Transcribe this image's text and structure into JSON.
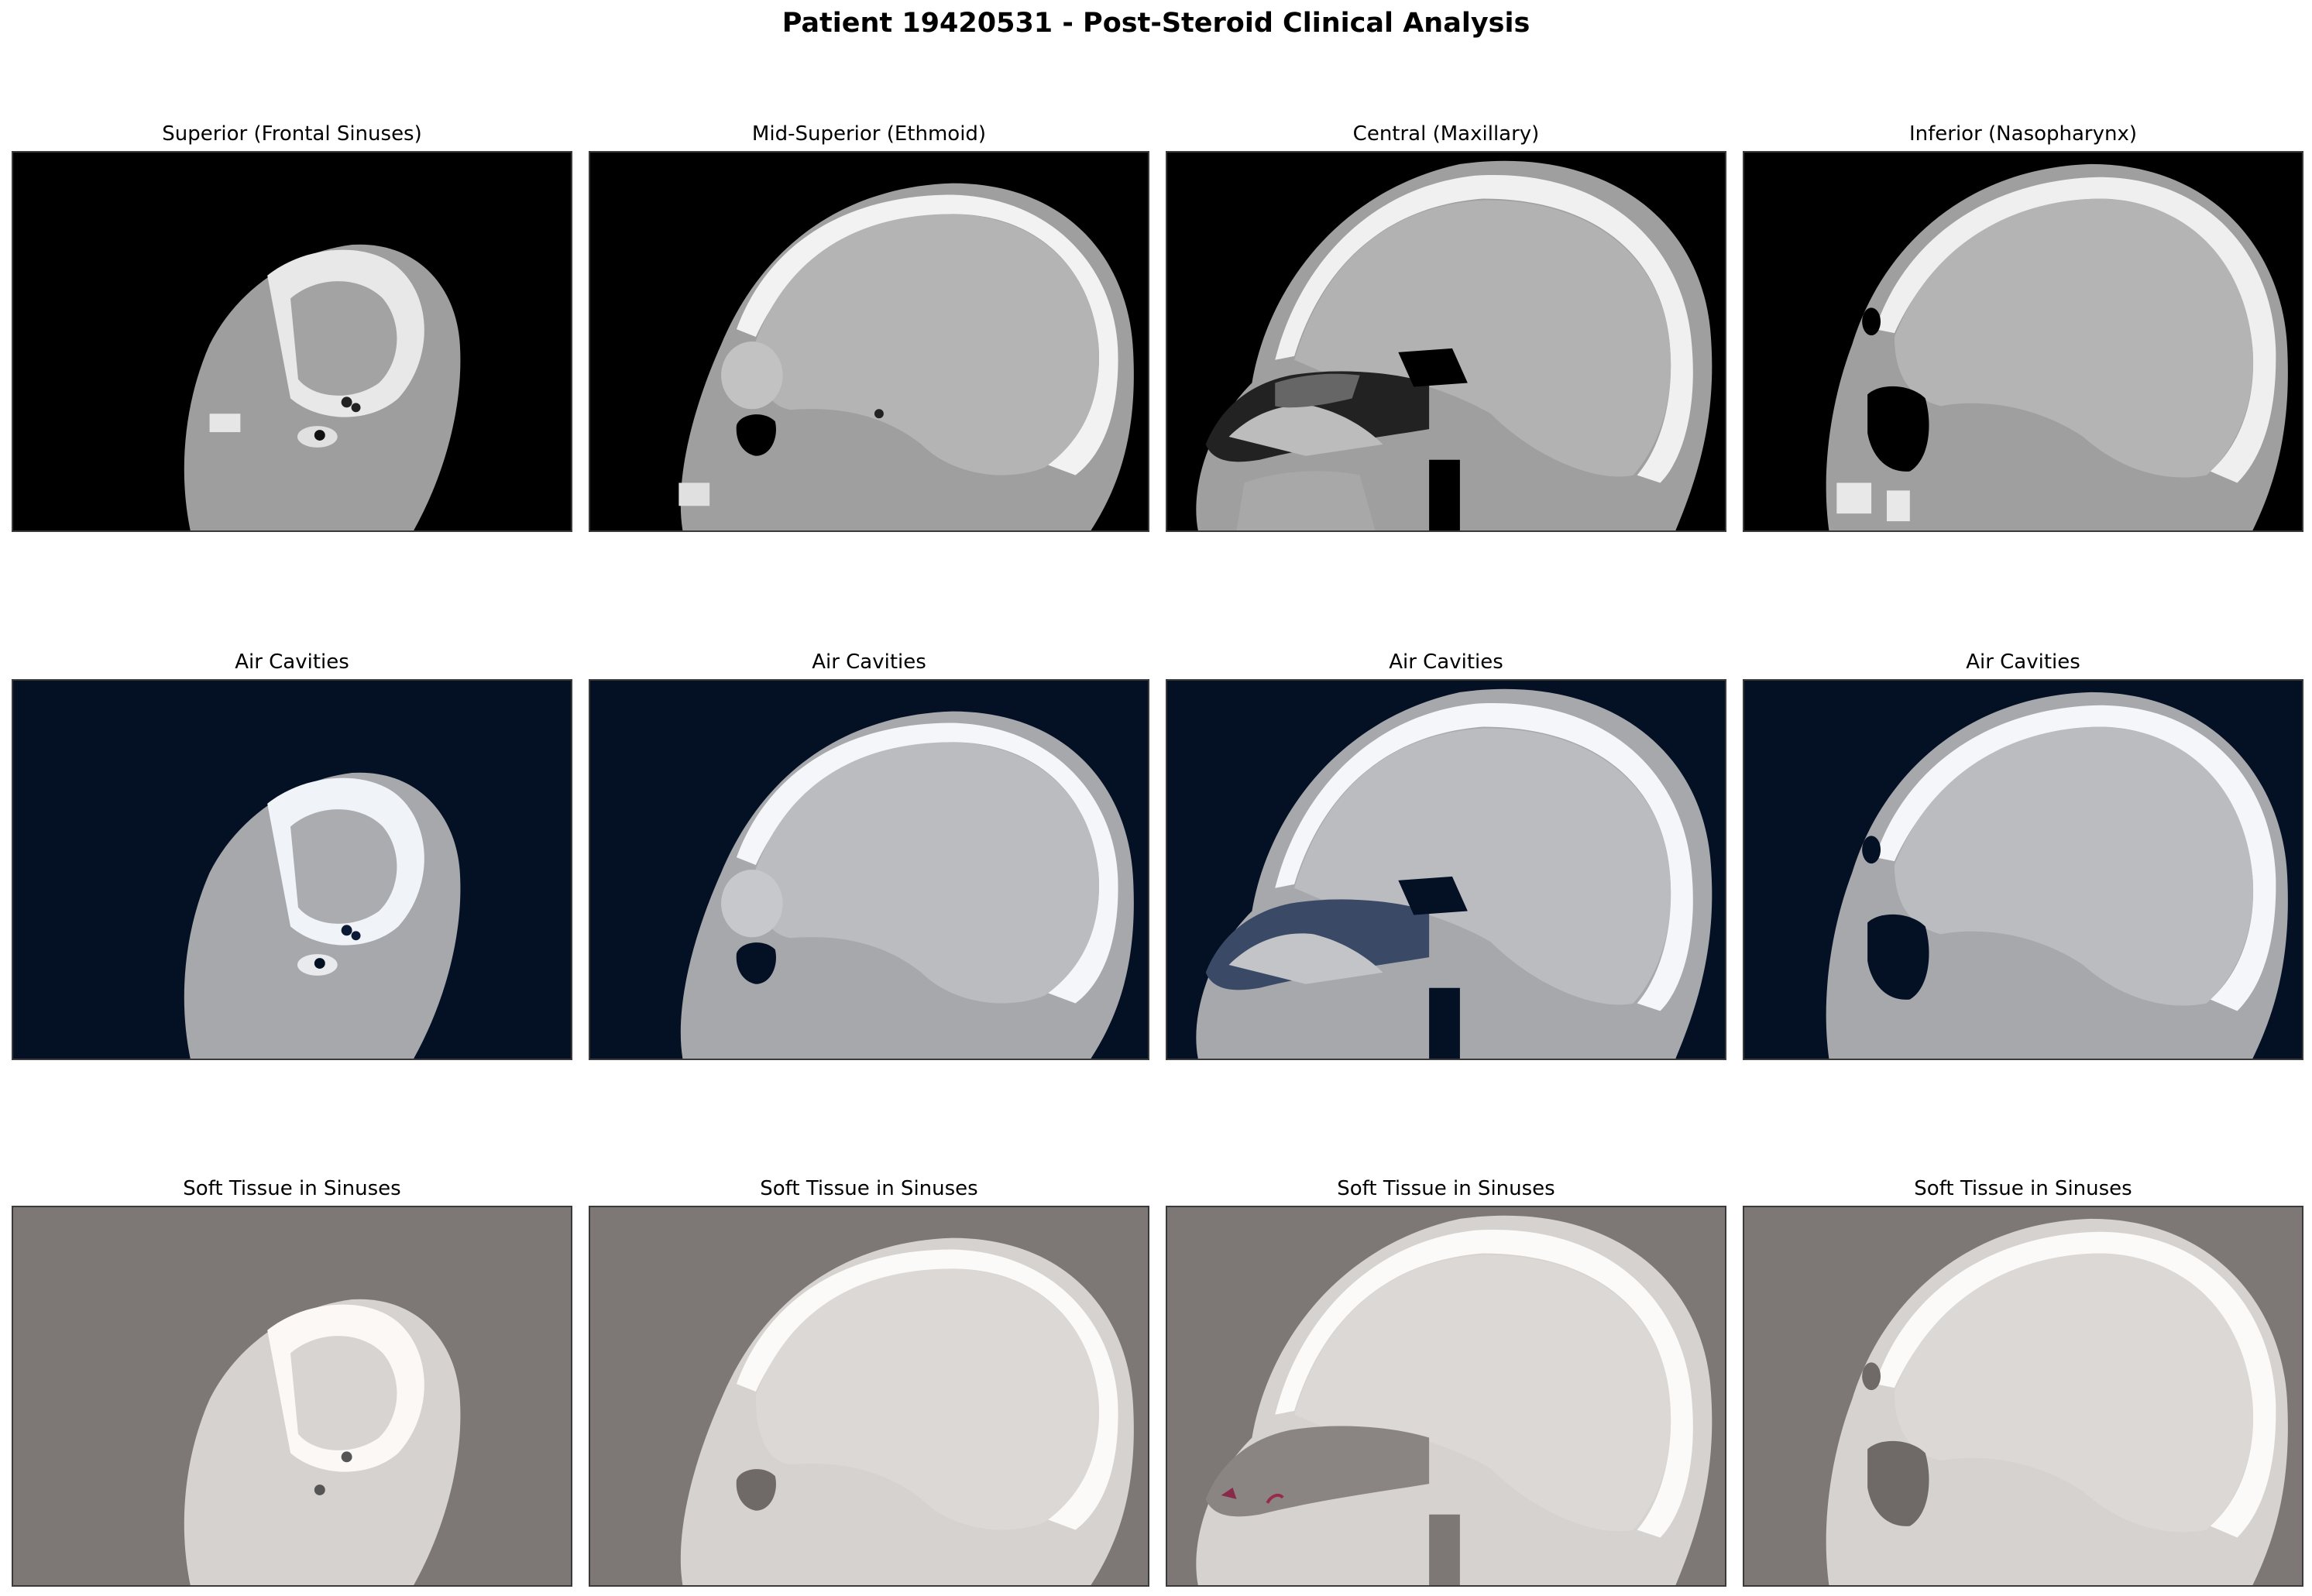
{
  "figure": {
    "title": "Patient 19420531 - Post-Steroid Clinical Analysis"
  },
  "rows": [
    {
      "name": "ct",
      "bg": "#000000",
      "titles": [
        "Superior (Frontal Sinuses)",
        "Mid-Superior (Ethmoid)",
        "Central (Maxillary)",
        "Inferior (Nasopharynx)"
      ]
    },
    {
      "name": "air",
      "bg": "#041024",
      "titles": [
        "Air Cavities",
        "Air Cavities",
        "Air Cavities",
        "Air Cavities"
      ]
    },
    {
      "name": "soft",
      "bg": "#7d7876",
      "titles": [
        "Soft Tissue in Sinuses",
        "Soft Tissue in Sinuses",
        "Soft Tissue in Sinuses",
        "Soft Tissue in Sinuses"
      ]
    }
  ]
}
